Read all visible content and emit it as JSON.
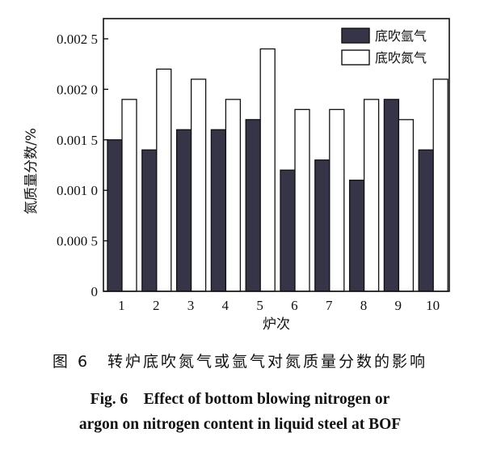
{
  "chart_data": {
    "type": "bar",
    "categories": [
      "1",
      "2",
      "3",
      "4",
      "5",
      "6",
      "7",
      "8",
      "9",
      "10"
    ],
    "series": [
      {
        "name": "底吹氩气",
        "color": "#353547",
        "values": [
          0.0015,
          0.0014,
          0.0016,
          0.0016,
          0.0017,
          0.0012,
          0.0013,
          0.0011,
          0.0019,
          0.0014
        ]
      },
      {
        "name": "底吹氮气",
        "color": "#ffffff",
        "values": [
          0.0019,
          0.0022,
          0.0021,
          0.0019,
          0.0024,
          0.0018,
          0.0018,
          0.0019,
          0.0017,
          0.0021
        ]
      }
    ],
    "xlabel": "炉次",
    "ylabel": "氮质量分数/%",
    "ylim": [
      0,
      0.0027
    ],
    "yticks": [
      0,
      0.0005,
      0.001,
      0.0015,
      0.002,
      0.0025
    ],
    "ytick_labels": [
      "0",
      "0.000 5",
      "0.001 0",
      "0.001 5",
      "0.002 0",
      "0.002 5"
    ],
    "legend_position": "top-right",
    "grid": false
  },
  "caption": {
    "cn": "图 6　转炉底吹氮气或氩气对氮质量分数的影响",
    "en_line1": "Fig. 6　Effect of bottom blowing nitrogen or",
    "en_line2": "argon on nitrogen content in liquid steel at BOF"
  }
}
